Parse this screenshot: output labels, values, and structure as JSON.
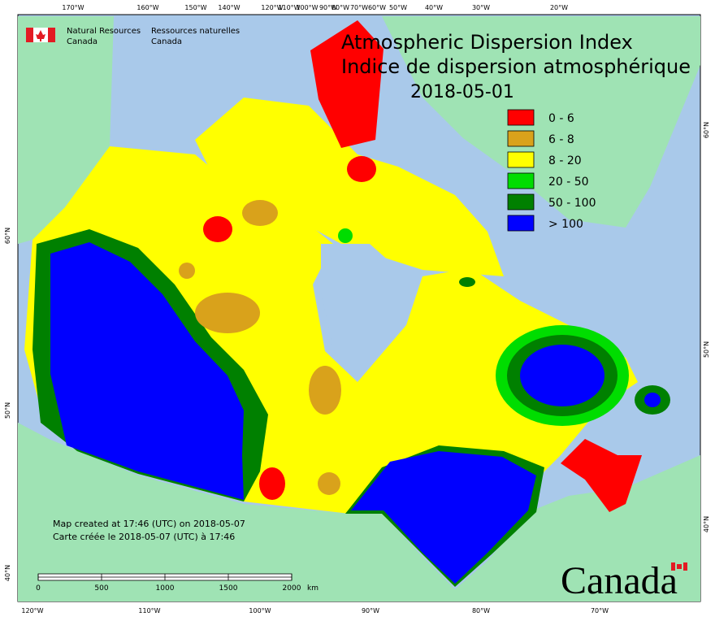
{
  "header": {
    "agency_en": [
      "Natural Resources",
      "Canada"
    ],
    "agency_fr": [
      "Ressources naturelles",
      "Canada"
    ]
  },
  "title": {
    "en": "Atmospheric Dispersion Index",
    "fr": "Indice de dispersion atmosphérique",
    "date": "2018-05-01"
  },
  "legend": [
    {
      "label": "0 - 6",
      "color": "#ff0000"
    },
    {
      "label": "6 - 8",
      "color": "#d9a21b"
    },
    {
      "label": "8 - 20",
      "color": "#ffff00"
    },
    {
      "label": "20 - 50",
      "color": "#00dd00"
    },
    {
      "label": "50 - 100",
      "color": "#008000"
    },
    {
      "label": "> 100",
      "color": "#0000ff"
    }
  ],
  "graticule": {
    "top": [
      "170°W",
      "160°W",
      "150°W",
      "140°W",
      "120°W",
      "110°W",
      "100°W",
      "90°W",
      "80°W",
      "70°W",
      "60°W",
      "50°W",
      "40°W",
      "30°W",
      "20°W"
    ],
    "bottom": [
      "120°W",
      "110°W",
      "100°W",
      "90°W",
      "80°W",
      "70°W"
    ],
    "left": [
      "60°N",
      "50°N",
      "40°N"
    ],
    "right": [
      "60°N",
      "50°N",
      "40°N"
    ]
  },
  "credits": [
    "Map created at 17:46 (UTC) on 2018-05-07",
    "Carte créée le 2018-05-07 (UTC) à 17:46"
  ],
  "scale_bar": {
    "labels": [
      "0",
      "500",
      "1000",
      "1500",
      "2000"
    ],
    "unit": "km"
  },
  "wordmark": "Canada"
}
